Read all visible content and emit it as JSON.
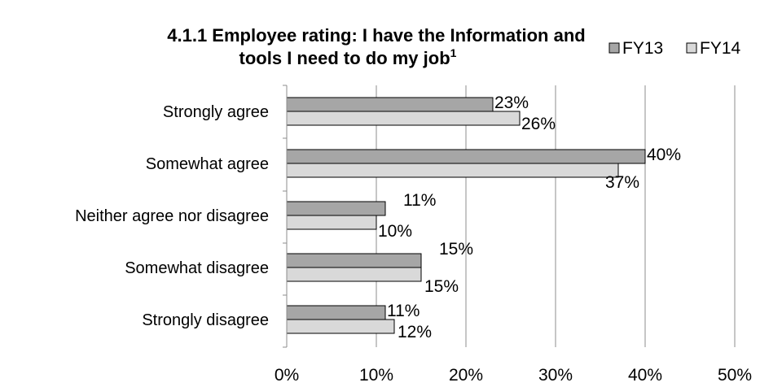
{
  "chart_data": {
    "type": "bar",
    "orientation": "horizontal",
    "title": "4.1.1 Employee rating: I have the Information and tools I need to do my job",
    "title_lines": [
      "4.1.1 Employee rating: I have the Information and",
      "tools I need to do my job"
    ],
    "title_superscript": "1",
    "categories": [
      "Strongly agree",
      "Somewhat agree",
      "Neither agree nor disagree",
      "Somewhat disagree",
      "Strongly disagree"
    ],
    "series": [
      {
        "name": "FY13",
        "color": "#a6a6a6",
        "values": [
          23,
          40,
          11,
          15,
          11
        ],
        "labels": [
          "23%",
          "40%",
          "11%",
          "15%",
          "11%"
        ]
      },
      {
        "name": "FY14",
        "color": "#d9d9d9",
        "values": [
          26,
          37,
          10,
          15,
          12
        ],
        "labels": [
          "26%",
          "37%",
          "10%",
          "15%",
          "12%"
        ]
      }
    ],
    "x_ticks": [
      0,
      10,
      20,
      30,
      40,
      50
    ],
    "x_tick_labels": [
      "0%",
      "10%",
      "20%",
      "30%",
      "40%",
      "50%"
    ],
    "xlim": [
      0,
      50
    ],
    "grid": true,
    "legend_position": "top-right"
  }
}
